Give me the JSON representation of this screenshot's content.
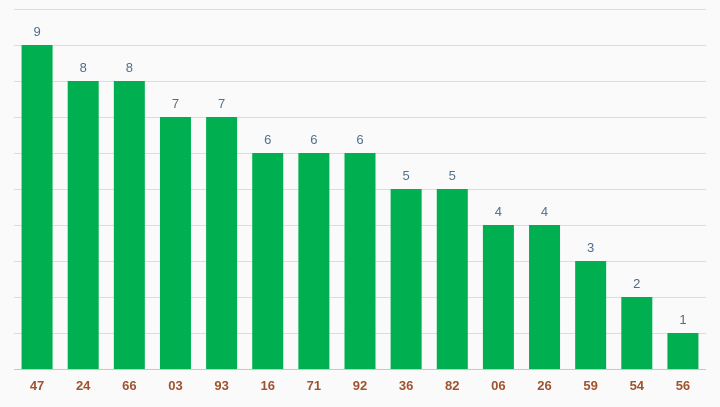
{
  "chart_data": {
    "type": "bar",
    "categories": [
      "47",
      "24",
      "66",
      "03",
      "93",
      "16",
      "71",
      "92",
      "36",
      "82",
      "06",
      "26",
      "59",
      "54",
      "56"
    ],
    "values": [
      9,
      8,
      8,
      7,
      7,
      6,
      6,
      6,
      5,
      5,
      4,
      4,
      3,
      2,
      1
    ],
    "title": "",
    "xlabel": "",
    "ylabel": "",
    "ylim": [
      0,
      10
    ],
    "grid": true,
    "legend": "none",
    "data_labels": true,
    "colors": {
      "bar": "#00b050",
      "value_label": "#4e6e8a",
      "tick_label": "#a0522d",
      "grid": "#dcdcdc",
      "background": "#fafafa"
    }
  }
}
